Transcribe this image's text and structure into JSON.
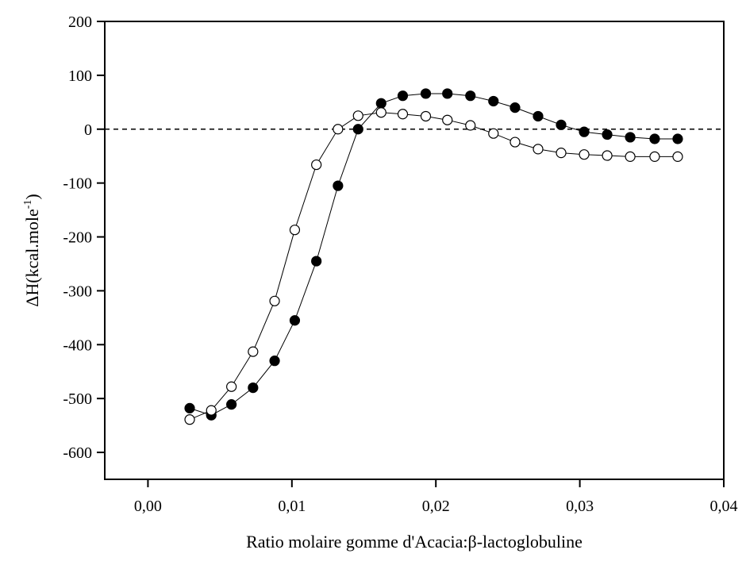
{
  "chart_data": {
    "type": "scatter",
    "title": "",
    "xlabel": "Ratio molaire gomme d'Acacia:β-lactoglobuline",
    "ylabel": {
      "prefix": "ΔH(kcal.mole",
      "superscript": "-1",
      "suffix": ")"
    },
    "xlim": [
      -0.003,
      0.04
    ],
    "ylim": [
      -650,
      200
    ],
    "x_ticks": [
      0.0,
      0.01,
      0.02,
      0.03,
      0.04
    ],
    "x_tick_labels": [
      "0,00",
      "0,01",
      "0,02",
      "0,03",
      "0,04"
    ],
    "y_ticks": [
      200,
      100,
      0,
      -100,
      -200,
      -300,
      -400,
      -500,
      -600
    ],
    "y_tick_labels": [
      "200",
      "100",
      "0",
      "-100",
      "-200",
      "-300",
      "-400",
      "-500",
      "-600"
    ],
    "reference_line": {
      "y": 0,
      "style": "dashed"
    },
    "grid": false,
    "legend": null,
    "series": [
      {
        "marker": "filled-circle",
        "color": "#000000",
        "x": [
          0.0029,
          0.0044,
          0.0058,
          0.0073,
          0.0088,
          0.0102,
          0.0117,
          0.0132,
          0.0146,
          0.0162,
          0.0177,
          0.0193,
          0.0208,
          0.0224,
          0.024,
          0.0255,
          0.0271,
          0.0287,
          0.0303,
          0.0319,
          0.0335,
          0.0352,
          0.0368
        ],
        "y": [
          -518,
          -531,
          -511,
          -480,
          -430,
          -355,
          -245,
          -105,
          0,
          48,
          62,
          66,
          66,
          62,
          52,
          40,
          24,
          8,
          -5,
          -10,
          -15,
          -18,
          -18
        ]
      },
      {
        "marker": "open-circle",
        "color": "#000000",
        "x": [
          0.0029,
          0.0044,
          0.0058,
          0.0073,
          0.0088,
          0.0102,
          0.0117,
          0.0132,
          0.0146,
          0.0162,
          0.0177,
          0.0193,
          0.0208,
          0.0224,
          0.024,
          0.0255,
          0.0271,
          0.0287,
          0.0303,
          0.0319,
          0.0335,
          0.0352,
          0.0368
        ],
        "y": [
          -539,
          -522,
          -478,
          -413,
          -319,
          -187,
          -66,
          0,
          25,
          31,
          28,
          24,
          17,
          7,
          -8,
          -24,
          -37,
          -44,
          -47,
          -49,
          -51,
          -51,
          -51
        ]
      }
    ]
  }
}
